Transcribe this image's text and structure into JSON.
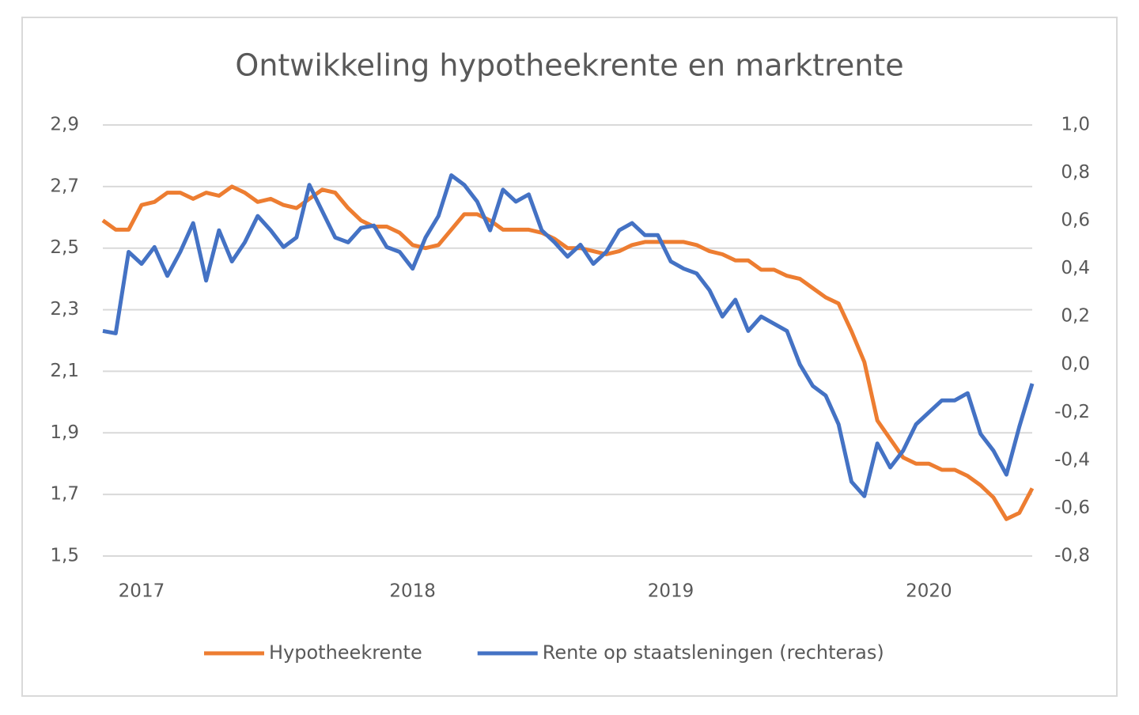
{
  "chart_data": {
    "type": "line",
    "title": "Ontwikkeling hypotheekrente en marktrente",
    "categories": [
      null,
      null,
      null,
      "2017",
      null,
      null,
      null,
      null,
      null,
      null,
      null,
      null,
      null,
      null,
      null,
      null,
      null,
      null,
      null,
      null,
      null,
      null,
      null,
      null,
      "2018",
      null,
      null,
      null,
      null,
      null,
      null,
      null,
      null,
      null,
      null,
      null,
      null,
      null,
      null,
      null,
      null,
      null,
      null,
      null,
      "2019",
      null,
      null,
      null,
      null,
      null,
      null,
      null,
      null,
      null,
      null,
      null,
      null,
      null,
      null,
      null,
      null,
      null,
      null,
      null,
      "2020",
      null,
      null,
      null,
      null,
      null,
      null,
      null,
      null
    ],
    "series": [
      {
        "name": "Hypotheekrente",
        "color": "#ed7d31",
        "axis": "y",
        "values": [
          2.59,
          2.56,
          2.56,
          2.64,
          2.65,
          2.68,
          2.68,
          2.66,
          2.68,
          2.67,
          2.7,
          2.68,
          2.65,
          2.66,
          2.64,
          2.63,
          2.66,
          2.69,
          2.68,
          2.63,
          2.59,
          2.57,
          2.57,
          2.55,
          2.51,
          2.5,
          2.51,
          2.56,
          2.61,
          2.61,
          2.59,
          2.56,
          2.56,
          2.56,
          2.55,
          2.53,
          2.5,
          2.5,
          2.49,
          2.48,
          2.49,
          2.51,
          2.52,
          2.52,
          2.52,
          2.52,
          2.51,
          2.49,
          2.48,
          2.46,
          2.46,
          2.43,
          2.43,
          2.41,
          2.4,
          2.37,
          2.34,
          2.32,
          2.23,
          2.13,
          1.94,
          1.88,
          1.82,
          1.8,
          1.8,
          1.78,
          1.78,
          1.76,
          1.73,
          1.69,
          1.62,
          1.64,
          1.72
        ]
      },
      {
        "name": "Rente op staatsleningen (rechteras)",
        "color": "#4472c4",
        "axis": "y2",
        "values": [
          0.14,
          0.13,
          0.47,
          0.42,
          0.49,
          0.37,
          0.47,
          0.59,
          0.35,
          0.56,
          0.43,
          0.51,
          0.62,
          0.56,
          0.49,
          0.53,
          0.75,
          0.64,
          0.53,
          0.51,
          0.57,
          0.58,
          0.49,
          0.47,
          0.4,
          0.53,
          0.62,
          0.79,
          0.75,
          0.68,
          0.56,
          0.73,
          0.68,
          0.71,
          0.56,
          0.51,
          0.45,
          0.5,
          0.42,
          0.47,
          0.56,
          0.59,
          0.54,
          0.54,
          0.43,
          0.4,
          0.38,
          0.31,
          0.2,
          0.27,
          0.14,
          0.2,
          0.17,
          0.14,
          0.0,
          -0.09,
          -0.13,
          -0.25,
          -0.49,
          -0.55,
          -0.33,
          -0.43,
          -0.36,
          -0.25,
          -0.2,
          -0.15,
          -0.15,
          -0.12,
          -0.29,
          -0.36,
          -0.46,
          -0.26,
          -0.08
        ]
      }
    ],
    "ylim": [
      1.5,
      2.9
    ],
    "yticks": [
      {
        "value": 1.5,
        "label": "1,5"
      },
      {
        "value": 1.7,
        "label": "1,7"
      },
      {
        "value": 1.9,
        "label": "1,9"
      },
      {
        "value": 2.1,
        "label": "2,1"
      },
      {
        "value": 2.3,
        "label": "2,3"
      },
      {
        "value": 2.5,
        "label": "2,5"
      },
      {
        "value": 2.7,
        "label": "2,7"
      },
      {
        "value": 2.9,
        "label": "2,9"
      }
    ],
    "y2lim": [
      -0.8,
      1.0
    ],
    "y2ticks": [
      {
        "value": -0.8,
        "label": "-0,8"
      },
      {
        "value": -0.6,
        "label": "-0,6"
      },
      {
        "value": -0.4,
        "label": "-0,4"
      },
      {
        "value": -0.2,
        "label": "-0,2"
      },
      {
        "value": 0.0,
        "label": "0,0"
      },
      {
        "value": 0.2,
        "label": "0,2"
      },
      {
        "value": 0.4,
        "label": "0,4"
      },
      {
        "value": 0.6,
        "label": "0,6"
      },
      {
        "value": 0.8,
        "label": "0,8"
      },
      {
        "value": 1.0,
        "label": "1,0"
      }
    ],
    "grid": true,
    "legend": "bottom"
  }
}
